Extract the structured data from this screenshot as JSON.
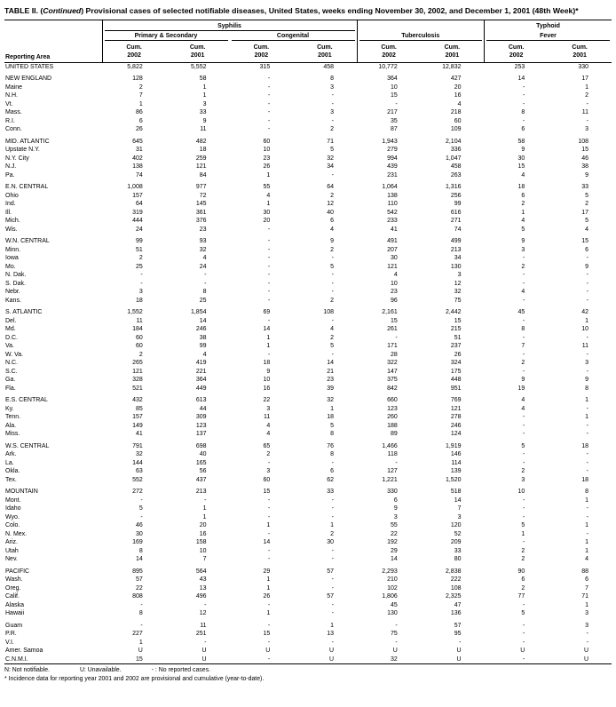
{
  "title": {
    "part1": "TABLE II. (",
    "part2": "Continued",
    "part3": ") Provisional cases of selected notifiable diseases, United States, weeks ending November 30, 2002, and December 1, 2001 (48th Week)*"
  },
  "header": {
    "reporting_area": "Reporting Area",
    "syphilis": "Syphilis",
    "primary_secondary": "Primary & Secondary",
    "congenital": "Congenital",
    "tuberculosis": "Tuberculosis",
    "typhoid_line1": "Typhoid",
    "typhoid_line2": "Fever",
    "cum2002": "Cum.\n2002",
    "cum2001": "Cum.\n2001"
  },
  "sections": [
    {
      "rows": [
        {
          "area": "UNITED STATES",
          "values": [
            "5,822",
            "5,552",
            "315",
            "458",
            "10,772",
            "12,832",
            "253",
            "330"
          ]
        }
      ]
    },
    {
      "rows": [
        {
          "area": "NEW ENGLAND",
          "values": [
            "128",
            "58",
            "-",
            "8",
            "364",
            "427",
            "14",
            "17"
          ]
        },
        {
          "area": "Maine",
          "values": [
            "2",
            "1",
            "-",
            "3",
            "10",
            "20",
            "-",
            "1"
          ]
        },
        {
          "area": "N.H.",
          "values": [
            "7",
            "1",
            "-",
            "-",
            "15",
            "16",
            "-",
            "2"
          ]
        },
        {
          "area": "Vt.",
          "values": [
            "1",
            "3",
            "-",
            "-",
            "-",
            "4",
            "-",
            "-"
          ]
        },
        {
          "area": "Mass.",
          "values": [
            "86",
            "33",
            "-",
            "3",
            "217",
            "218",
            "8",
            "11"
          ]
        },
        {
          "area": "R.I.",
          "values": [
            "6",
            "9",
            "-",
            "-",
            "35",
            "60",
            "-",
            "-"
          ]
        },
        {
          "area": "Conn.",
          "values": [
            "26",
            "11",
            "-",
            "2",
            "87",
            "109",
            "6",
            "3"
          ]
        }
      ]
    },
    {
      "rows": [
        {
          "area": "MID. ATLANTIC",
          "values": [
            "645",
            "482",
            "60",
            "71",
            "1,943",
            "2,104",
            "58",
            "108"
          ]
        },
        {
          "area": "Upstate N.Y.",
          "values": [
            "31",
            "18",
            "10",
            "5",
            "279",
            "336",
            "9",
            "15"
          ]
        },
        {
          "area": "N.Y. City",
          "values": [
            "402",
            "259",
            "23",
            "32",
            "994",
            "1,047",
            "30",
            "46"
          ]
        },
        {
          "area": "N.J.",
          "values": [
            "138",
            "121",
            "26",
            "34",
            "439",
            "458",
            "15",
            "38"
          ]
        },
        {
          "area": "Pa.",
          "values": [
            "74",
            "84",
            "1",
            "-",
            "231",
            "263",
            "4",
            "9"
          ]
        }
      ]
    },
    {
      "rows": [
        {
          "area": "E.N. CENTRAL",
          "values": [
            "1,008",
            "977",
            "55",
            "64",
            "1,064",
            "1,316",
            "18",
            "33"
          ]
        },
        {
          "area": "Ohio",
          "values": [
            "157",
            "72",
            "4",
            "2",
            "138",
            "256",
            "6",
            "5"
          ]
        },
        {
          "area": "Ind.",
          "values": [
            "64",
            "145",
            "1",
            "12",
            "110",
            "99",
            "2",
            "2"
          ]
        },
        {
          "area": "Ill.",
          "values": [
            "319",
            "361",
            "30",
            "40",
            "542",
            "616",
            "1",
            "17"
          ]
        },
        {
          "area": "Mich.",
          "values": [
            "444",
            "376",
            "20",
            "6",
            "233",
            "271",
            "4",
            "5"
          ]
        },
        {
          "area": "Wis.",
          "values": [
            "24",
            "23",
            "-",
            "4",
            "41",
            "74",
            "5",
            "4"
          ]
        }
      ]
    },
    {
      "rows": [
        {
          "area": "W.N. CENTRAL",
          "values": [
            "99",
            "93",
            "-",
            "9",
            "491",
            "499",
            "9",
            "15"
          ]
        },
        {
          "area": "Minn.",
          "values": [
            "51",
            "32",
            "-",
            "2",
            "207",
            "213",
            "3",
            "6"
          ]
        },
        {
          "area": "Iowa",
          "values": [
            "2",
            "4",
            "-",
            "-",
            "30",
            "34",
            "-",
            "-"
          ]
        },
        {
          "area": "Mo.",
          "values": [
            "25",
            "24",
            "-",
            "5",
            "121",
            "130",
            "2",
            "9"
          ]
        },
        {
          "area": "N. Dak.",
          "values": [
            "-",
            "-",
            "-",
            "-",
            "4",
            "3",
            "-",
            "-"
          ]
        },
        {
          "area": "S. Dak.",
          "values": [
            "-",
            "-",
            "-",
            "-",
            "10",
            "12",
            "-",
            "-"
          ]
        },
        {
          "area": "Nebr.",
          "values": [
            "3",
            "8",
            "-",
            "-",
            "23",
            "32",
            "4",
            "-"
          ]
        },
        {
          "area": "Kans.",
          "values": [
            "18",
            "25",
            "-",
            "2",
            "96",
            "75",
            "-",
            "-"
          ]
        }
      ]
    },
    {
      "rows": [
        {
          "area": "S. ATLANTIC",
          "values": [
            "1,552",
            "1,854",
            "69",
            "108",
            "2,161",
            "2,442",
            "45",
            "42"
          ]
        },
        {
          "area": "Del.",
          "values": [
            "11",
            "14",
            "-",
            "-",
            "15",
            "15",
            "-",
            "1"
          ]
        },
        {
          "area": "Md.",
          "values": [
            "184",
            "246",
            "14",
            "4",
            "261",
            "215",
            "8",
            "10"
          ]
        },
        {
          "area": "D.C.",
          "values": [
            "60",
            "38",
            "1",
            "2",
            "-",
            "51",
            "-",
            "-"
          ]
        },
        {
          "area": "Va.",
          "values": [
            "60",
            "99",
            "1",
            "5",
            "171",
            "237",
            "7",
            "11"
          ]
        },
        {
          "area": "W. Va.",
          "values": [
            "2",
            "4",
            "-",
            "-",
            "28",
            "26",
            "-",
            "-"
          ]
        },
        {
          "area": "N.C.",
          "values": [
            "265",
            "419",
            "18",
            "14",
            "322",
            "324",
            "2",
            "3"
          ]
        },
        {
          "area": "S.C.",
          "values": [
            "121",
            "221",
            "9",
            "21",
            "147",
            "175",
            "-",
            "-"
          ]
        },
        {
          "area": "Ga.",
          "values": [
            "328",
            "364",
            "10",
            "23",
            "375",
            "448",
            "9",
            "9"
          ]
        },
        {
          "area": "Fla.",
          "values": [
            "521",
            "449",
            "16",
            "39",
            "842",
            "951",
            "19",
            "8"
          ]
        }
      ]
    },
    {
      "rows": [
        {
          "area": "E.S. CENTRAL",
          "values": [
            "432",
            "613",
            "22",
            "32",
            "660",
            "769",
            "4",
            "1"
          ]
        },
        {
          "area": "Ky.",
          "values": [
            "85",
            "44",
            "3",
            "1",
            "123",
            "121",
            "4",
            "-"
          ]
        },
        {
          "area": "Tenn.",
          "values": [
            "157",
            "309",
            "11",
            "18",
            "260",
            "278",
            "-",
            "1"
          ]
        },
        {
          "area": "Ala.",
          "values": [
            "149",
            "123",
            "4",
            "5",
            "188",
            "246",
            "-",
            "-"
          ]
        },
        {
          "area": "Miss.",
          "values": [
            "41",
            "137",
            "4",
            "8",
            "89",
            "124",
            "-",
            "-"
          ]
        }
      ]
    },
    {
      "rows": [
        {
          "area": "W.S. CENTRAL",
          "values": [
            "791",
            "698",
            "65",
            "76",
            "1,466",
            "1,919",
            "5",
            "18"
          ]
        },
        {
          "area": "Ark.",
          "values": [
            "32",
            "40",
            "2",
            "8",
            "118",
            "146",
            "-",
            "-"
          ]
        },
        {
          "area": "La.",
          "values": [
            "144",
            "165",
            "-",
            "-",
            "-",
            "114",
            "-",
            "-"
          ]
        },
        {
          "area": "Okla.",
          "values": [
            "63",
            "56",
            "3",
            "6",
            "127",
            "139",
            "2",
            "-"
          ]
        },
        {
          "area": "Tex.",
          "values": [
            "552",
            "437",
            "60",
            "62",
            "1,221",
            "1,520",
            "3",
            "18"
          ]
        }
      ]
    },
    {
      "rows": [
        {
          "area": "MOUNTAIN",
          "values": [
            "272",
            "213",
            "15",
            "33",
            "330",
            "518",
            "10",
            "8"
          ]
        },
        {
          "area": "Mont.",
          "values": [
            "-",
            "-",
            "-",
            "-",
            "6",
            "14",
            "-",
            "1"
          ]
        },
        {
          "area": "Idaho",
          "values": [
            "5",
            "1",
            "-",
            "-",
            "9",
            "7",
            "-",
            "-"
          ]
        },
        {
          "area": "Wyo.",
          "values": [
            "-",
            "1",
            "-",
            "-",
            "3",
            "3",
            "-",
            "-"
          ]
        },
        {
          "area": "Colo.",
          "values": [
            "46",
            "20",
            "1",
            "1",
            "55",
            "120",
            "5",
            "1"
          ]
        },
        {
          "area": "N. Mex.",
          "values": [
            "30",
            "16",
            "-",
            "2",
            "22",
            "52",
            "1",
            "-"
          ]
        },
        {
          "area": "Ariz.",
          "values": [
            "169",
            "158",
            "14",
            "30",
            "192",
            "209",
            "-",
            "1"
          ]
        },
        {
          "area": "Utah",
          "values": [
            "8",
            "10",
            "-",
            "-",
            "29",
            "33",
            "2",
            "1"
          ]
        },
        {
          "area": "Nev.",
          "values": [
            "14",
            "7",
            "-",
            "-",
            "14",
            "80",
            "2",
            "4"
          ]
        }
      ]
    },
    {
      "rows": [
        {
          "area": "PACIFIC",
          "values": [
            "895",
            "564",
            "29",
            "57",
            "2,293",
            "2,838",
            "90",
            "88"
          ]
        },
        {
          "area": "Wash.",
          "values": [
            "57",
            "43",
            "1",
            "-",
            "210",
            "222",
            "6",
            "6"
          ]
        },
        {
          "area": "Oreg.",
          "values": [
            "22",
            "13",
            "1",
            "-",
            "102",
            "108",
            "2",
            "7"
          ]
        },
        {
          "area": "Calif.",
          "values": [
            "808",
            "496",
            "26",
            "57",
            "1,806",
            "2,325",
            "77",
            "71"
          ]
        },
        {
          "area": "Alaska",
          "values": [
            "-",
            "-",
            "-",
            "-",
            "45",
            "47",
            "-",
            "1"
          ]
        },
        {
          "area": "Hawaii",
          "values": [
            "8",
            "12",
            "1",
            "-",
            "130",
            "136",
            "5",
            "3"
          ]
        }
      ]
    },
    {
      "rows": [
        {
          "area": "Guam",
          "values": [
            "-",
            "11",
            "-",
            "1",
            "-",
            "57",
            "-",
            "3"
          ]
        },
        {
          "area": "P.R.",
          "values": [
            "227",
            "251",
            "15",
            "13",
            "75",
            "95",
            "-",
            "-"
          ]
        },
        {
          "area": "V.I.",
          "values": [
            "1",
            "-",
            "-",
            "-",
            "-",
            "-",
            "-",
            "-"
          ]
        },
        {
          "area": "Amer. Samoa",
          "values": [
            "U",
            "U",
            "U",
            "U",
            "U",
            "U",
            "U",
            "U"
          ]
        },
        {
          "area": "C.N.M.I.",
          "values": [
            "15",
            "U",
            "-",
            "U",
            "32",
            "U",
            "-",
            "U"
          ]
        }
      ]
    }
  ],
  "footnotes": {
    "n": "N: Not notifiable.",
    "u": "U: Unavailable.",
    "dash": "- : No reported cases.",
    "incidence": "* Incidence data for reporting year 2001 and 2002 are provisional and cumulative (year-to-date)."
  }
}
